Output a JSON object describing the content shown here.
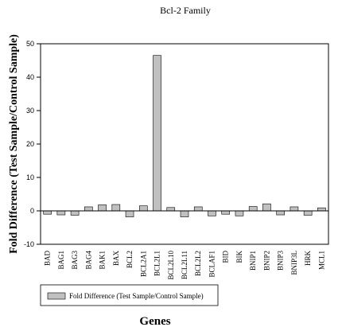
{
  "chart_data": {
    "type": "bar",
    "title": "Bcl-2 Family",
    "xlabel": "Genes",
    "ylabel": "Fold Difference (Test Sample/Control Sample)",
    "ylim": [
      -10,
      50
    ],
    "yticks": [
      -10,
      0,
      10,
      20,
      30,
      40,
      50
    ],
    "grid": false,
    "legend_position": "bottom",
    "bar_color": "#c0c0c0",
    "categories": [
      "BAD",
      "BAG1",
      "BAG3",
      "BAG4",
      "BAK1",
      "BAX",
      "BCL2",
      "BCL2A1",
      "BCL2L1",
      "BCL2L10",
      "BCL2L11",
      "BCL2L2",
      "BCLAF1",
      "BID",
      "BIK",
      "BNIP1",
      "BNIP2",
      "BNIP3",
      "BNIP3L",
      "HRK",
      "MCL1"
    ],
    "series": [
      {
        "name": "Fold Difference (Test Sample/Control Sample)",
        "values": [
          -1.0,
          -1.2,
          -1.3,
          1.2,
          1.8,
          1.9,
          -1.8,
          1.5,
          46.5,
          1.0,
          -1.8,
          1.2,
          -1.5,
          -1.0,
          -1.5,
          1.3,
          2.1,
          -1.2,
          1.2,
          -1.3,
          0.9
        ]
      }
    ]
  }
}
